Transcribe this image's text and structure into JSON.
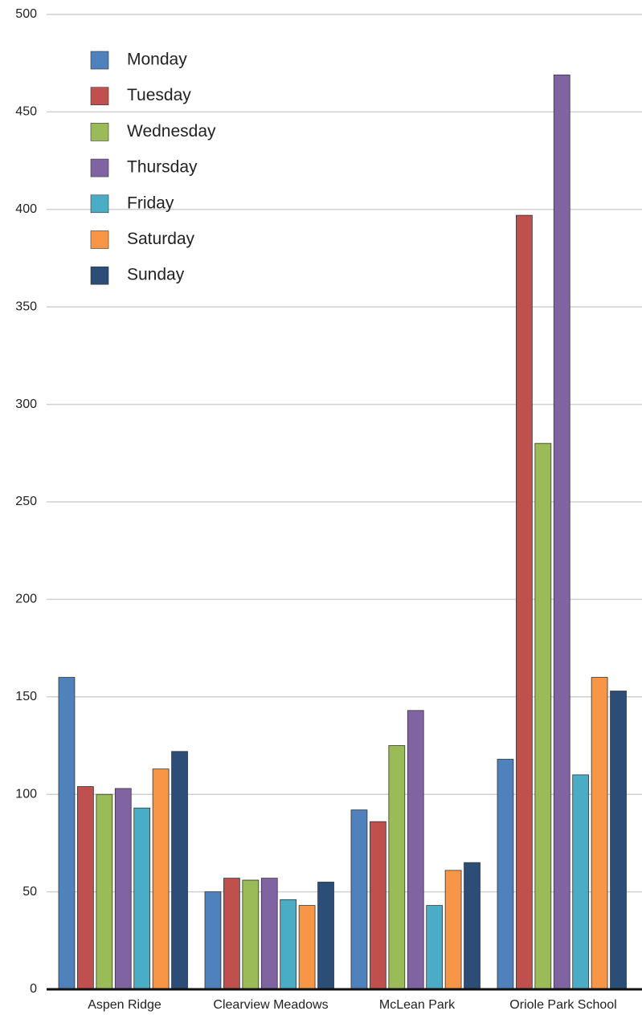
{
  "chart_data": {
    "type": "bar",
    "categories": [
      "Aspen Ridge",
      "Clearview Meadows",
      "McLean Park",
      "Oriole Park School"
    ],
    "series": [
      {
        "name": "Monday",
        "color": "#4f81bd",
        "values": [
          160,
          50,
          92,
          118
        ]
      },
      {
        "name": "Tuesday",
        "color": "#c0504d",
        "values": [
          104,
          57,
          86,
          397
        ]
      },
      {
        "name": "Wednesday",
        "color": "#9bbb59",
        "values": [
          100,
          56,
          125,
          280
        ]
      },
      {
        "name": "Thursday",
        "color": "#8064a2",
        "values": [
          103,
          57,
          143,
          469
        ]
      },
      {
        "name": "Friday",
        "color": "#4bacc6",
        "values": [
          93,
          46,
          43,
          110
        ]
      },
      {
        "name": "Saturday",
        "color": "#f79646",
        "values": [
          113,
          43,
          61,
          160
        ]
      },
      {
        "name": "Sunday",
        "color": "#2c4d75",
        "values": [
          122,
          55,
          65,
          153
        ]
      }
    ],
    "ylim": [
      0,
      500
    ],
    "yticks": [
      0,
      50,
      100,
      150,
      200,
      250,
      300,
      350,
      400,
      450,
      500
    ],
    "grid": true,
    "legend": "upper left"
  }
}
